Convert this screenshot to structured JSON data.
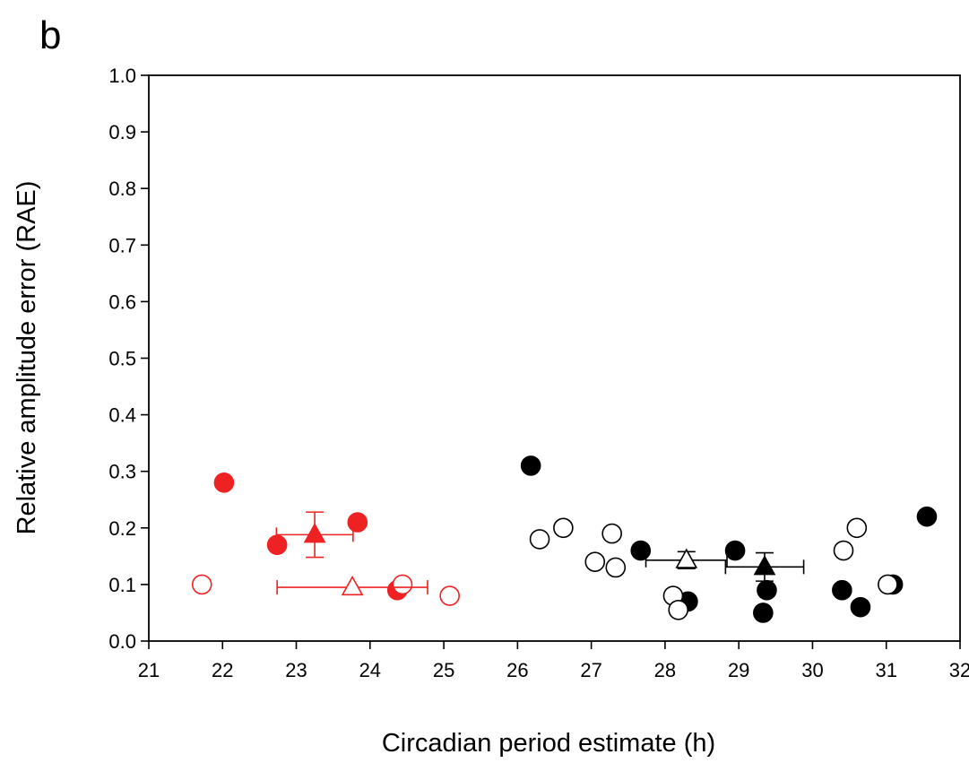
{
  "panel_label": "b",
  "chart_data": {
    "type": "scatter",
    "title": "",
    "xlabel": "Circadian period estimate (h)",
    "ylabel": "Relative amplitude error (RAE)",
    "xlim": [
      21,
      32
    ],
    "ylim": [
      0.0,
      1.0
    ],
    "xticks": [
      "21",
      "22",
      "23",
      "24",
      "25",
      "26",
      "27",
      "28",
      "29",
      "30",
      "31",
      "32"
    ],
    "yticks": [
      "0.0",
      "0.1",
      "0.2",
      "0.3",
      "0.4",
      "0.5",
      "0.6",
      "0.7",
      "0.8",
      "0.9",
      "1.0"
    ],
    "grid": false,
    "legend": "none",
    "series": [
      {
        "marker": "circle",
        "fill": "#ee2222",
        "stroke": "#ee2222",
        "points": [
          [
            22.02,
            0.28
          ],
          [
            22.74,
            0.17
          ],
          [
            23.83,
            0.21
          ],
          [
            24.37,
            0.09
          ]
        ]
      },
      {
        "marker": "circle",
        "fill": "#ffffff",
        "stroke": "#ee2222",
        "points": [
          [
            21.72,
            0.1
          ],
          [
            24.44,
            0.1
          ],
          [
            25.08,
            0.08
          ]
        ]
      },
      {
        "marker": "circle",
        "fill": "#000000",
        "stroke": "#000000",
        "points": [
          [
            26.18,
            0.31
          ],
          [
            27.67,
            0.16
          ],
          [
            28.31,
            0.07
          ],
          [
            28.95,
            0.16
          ],
          [
            29.38,
            0.09
          ],
          [
            29.33,
            0.05
          ],
          [
            30.4,
            0.09
          ],
          [
            30.65,
            0.06
          ],
          [
            31.09,
            0.1
          ],
          [
            31.55,
            0.22
          ]
        ]
      },
      {
        "marker": "circle",
        "fill": "#ffffff",
        "stroke": "#000000",
        "points": [
          [
            26.3,
            0.18
          ],
          [
            26.62,
            0.2
          ],
          [
            27.05,
            0.14
          ],
          [
            27.28,
            0.19
          ],
          [
            27.33,
            0.13
          ],
          [
            28.11,
            0.08
          ],
          [
            28.18,
            0.055
          ],
          [
            30.42,
            0.16
          ],
          [
            30.6,
            0.2
          ],
          [
            31.02,
            0.1
          ]
        ]
      },
      {
        "marker": "triangle",
        "fill": "#ee2222",
        "stroke": "#ee2222",
        "points": [
          [
            23.25,
            0.188
          ]
        ],
        "xerr": [
          0.52
        ],
        "yerr": [
          0.04
        ]
      },
      {
        "marker": "triangle",
        "fill": "#ffffff",
        "stroke": "#ee2222",
        "points": [
          [
            23.76,
            0.095
          ]
        ],
        "xerr": [
          1.02
        ],
        "yerr": [
          0.0
        ]
      },
      {
        "marker": "triangle",
        "fill": "#ffffff",
        "stroke": "#000000",
        "points": [
          [
            28.29,
            0.143
          ]
        ],
        "xerr": [
          0.55
        ],
        "yerr": [
          0.015
        ]
      },
      {
        "marker": "triangle",
        "fill": "#000000",
        "stroke": "#000000",
        "points": [
          [
            29.35,
            0.131
          ]
        ],
        "xerr": [
          0.53
        ],
        "yerr": [
          0.025
        ]
      }
    ]
  }
}
